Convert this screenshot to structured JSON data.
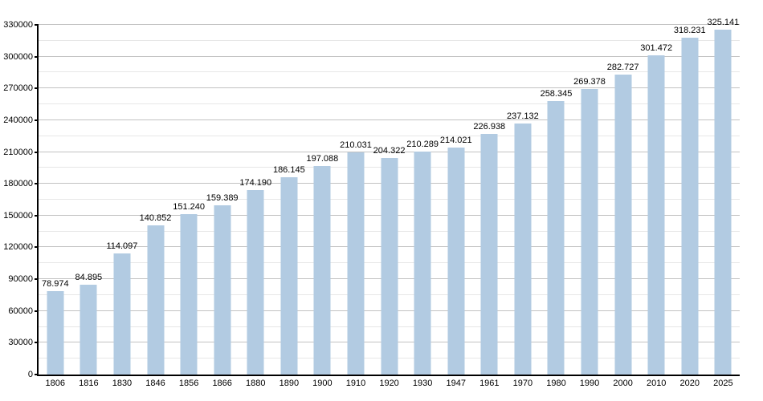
{
  "chart_data": {
    "type": "bar",
    "title": "",
    "xlabel": "",
    "ylabel": "",
    "categories": [
      "1806",
      "1816",
      "1830",
      "1846",
      "1856",
      "1866",
      "1880",
      "1890",
      "1900",
      "1910",
      "1920",
      "1930",
      "1947",
      "1961",
      "1970",
      "1980",
      "1990",
      "2000",
      "2010",
      "2020",
      "2025"
    ],
    "values": [
      78974,
      84895,
      114097,
      140852,
      151240,
      159389,
      174190,
      186145,
      197088,
      210031,
      204322,
      210289,
      214021,
      226938,
      237132,
      258345,
      269378,
      282727,
      301472,
      318231,
      325141
    ],
    "value_labels": [
      "78.974",
      "84.895",
      "114.097",
      "140.852",
      "151.240",
      "159.389",
      "174.190",
      "186.145",
      "197.088",
      "210.031",
      "204.322",
      "210.289",
      "214.021",
      "226.938",
      "237.132",
      "258.345",
      "269.378",
      "282.727",
      "301.472",
      "318.231",
      "325.141"
    ],
    "ylim": [
      0,
      330000
    ],
    "y_major_step": 30000,
    "y_minor_step": 15000,
    "y_tick_labels": [
      "0",
      "30000",
      "60000",
      "90000",
      "120000",
      "150000",
      "180000",
      "210000",
      "240000",
      "270000",
      "300000",
      "330000"
    ],
    "grid": true,
    "legend_position": "none",
    "colors": {
      "bar": "#B2CBE2",
      "major_grid": "#C2C2C2",
      "minor_grid": "#E7E7E7",
      "axis": "#000000",
      "text": "#000000",
      "background": "#FFFFFF"
    }
  }
}
